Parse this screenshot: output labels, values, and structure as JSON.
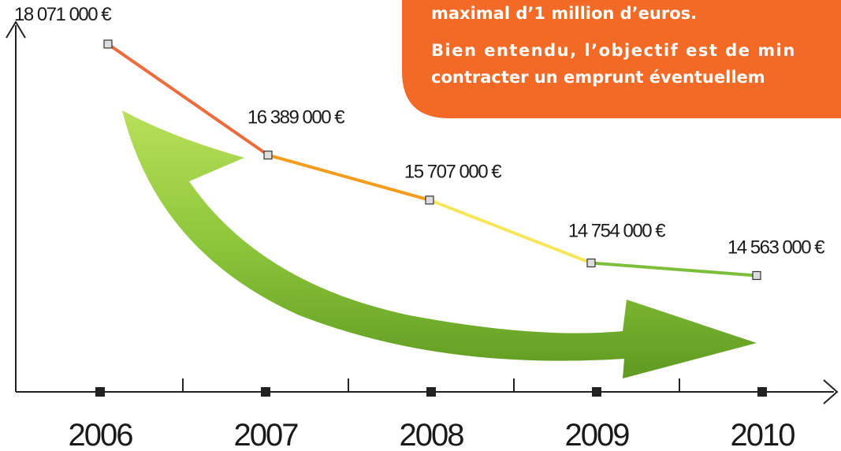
{
  "chart_data": {
    "type": "line",
    "annotations": [
      "maximal d’1 million d’euros.",
      "Bien entendu, l’objectif est de min",
      "contracter un emprunt éventuellem"
    ],
    "categories": [
      "2006",
      "2007",
      "2008",
      "2009",
      "2010"
    ],
    "values": [
      18071000,
      16389000,
      15707000,
      14754000,
      14563000
    ],
    "value_labels": [
      "18 071 000 €",
      "16 389 000 €",
      "15 707 000 €",
      "14 754 000 €",
      "14 563 000 €"
    ],
    "segment_colors": [
      "#ee6b3b",
      "#f39c1e",
      "#f6e65a",
      "#7dbf3d"
    ],
    "ylim": [
      12800000,
      18500000
    ]
  }
}
